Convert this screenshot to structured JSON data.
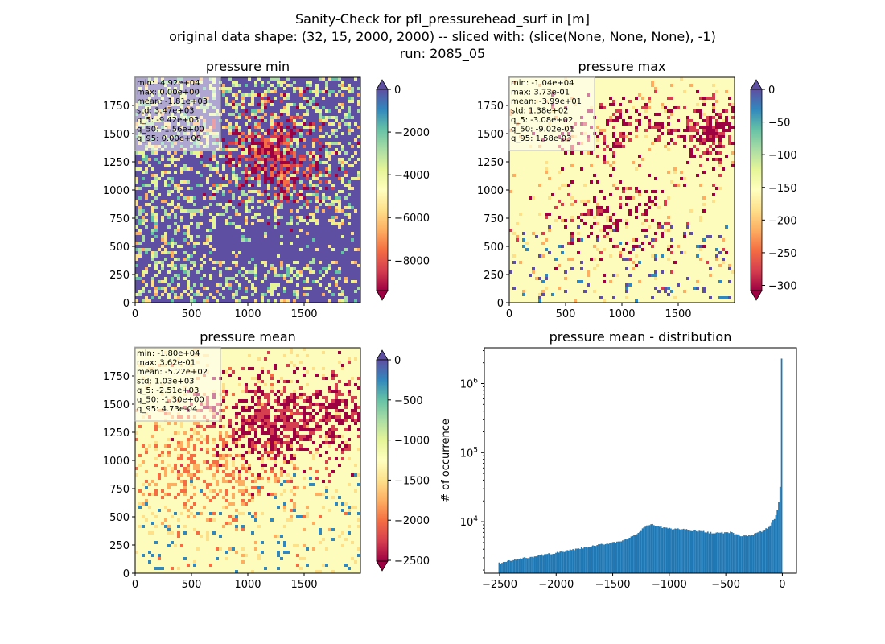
{
  "figure": {
    "title_lines": [
      "Sanity-Check for pfl_pressurehead_surf in [m]",
      "original data shape: (32, 15, 2000, 2000) -- sliced with: (slice(None, None, None), -1)",
      "run: 2085_05"
    ]
  },
  "chart_data": [
    {
      "type": "heatmap",
      "title": "pressure min",
      "colormap": "Spectral",
      "extend": "both",
      "x_ticks": [
        0,
        500,
        1000,
        1500
      ],
      "y_ticks": [
        0,
        250,
        500,
        750,
        1000,
        1250,
        1500,
        1750
      ],
      "xlim": [
        0,
        1999
      ],
      "ylim": [
        0,
        1999
      ],
      "color_range": [
        -9420,
        0
      ],
      "colorbar_ticks": [
        0,
        -2000,
        -4000,
        -6000,
        -8000
      ],
      "colorbar_labels": [
        "0",
        "−2000",
        "−4000",
        "−6000",
        "−8000"
      ],
      "stats": [
        "min: -4.92e+04",
        "max: 0.00e+00",
        "mean: -1.81e+03",
        "std: 3.47e+03",
        "q_5: -9.42e+03",
        "q_50: -1.56e+00",
        "q_95: 0.00e+00"
      ],
      "pattern": "mostly near 0 (blue) with strong negative (dark red) cluster in upper center and scattered yellow/green patches"
    },
    {
      "type": "heatmap",
      "title": "pressure max",
      "colormap": "Spectral",
      "extend": "both",
      "x_ticks": [
        0,
        500,
        1000,
        1500
      ],
      "y_ticks": [
        0,
        250,
        500,
        750,
        1000,
        1250,
        1500,
        1750
      ],
      "xlim": [
        0,
        1999
      ],
      "ylim": [
        0,
        1999
      ],
      "color_range": [
        -308,
        0
      ],
      "colorbar_ticks": [
        0,
        -50,
        -100,
        -150,
        -200,
        -250,
        -300
      ],
      "colorbar_labels": [
        "0",
        "−50",
        "−100",
        "−150",
        "−200",
        "−250",
        "−300"
      ],
      "stats": [
        "min: -1.04e+04",
        "max: 3.73e-01",
        "mean: -3.99e+01",
        "std: 1.38e+02",
        "q_5: -3.08e+02",
        "q_50: -9.02e-01",
        "q_95: 1.58e-03"
      ],
      "pattern": "mostly pale yellow (near 0) with red speckle in upper half, a dense red patch top-right and blue speckle in the bottom"
    },
    {
      "type": "heatmap",
      "title": "pressure mean",
      "colormap": "Spectral",
      "extend": "both",
      "x_ticks": [
        0,
        500,
        1000,
        1500
      ],
      "y_ticks": [
        0,
        250,
        500,
        750,
        1000,
        1250,
        1500,
        1750
      ],
      "xlim": [
        0,
        1999
      ],
      "ylim": [
        0,
        1999
      ],
      "color_range": [
        -2510,
        0
      ],
      "colorbar_ticks": [
        0,
        -500,
        -1000,
        -1500,
        -2000,
        -2500
      ],
      "colorbar_labels": [
        "0",
        "−500",
        "−1000",
        "−1500",
        "−2000",
        "−2500"
      ],
      "stats": [
        "min: -1.80e+04",
        "max: 3.62e-01",
        "mean: -5.22e+02",
        "std: 1.03e+03",
        "q_5: -2.51e+03",
        "q_50: -1.30e+00",
        "q_95: 4.73e-04"
      ],
      "pattern": "pale yellow background with dark red cluster upper center, orange speckle on the right and scattered blue dots in lower half"
    },
    {
      "type": "bar",
      "title": "pressure mean - distribution",
      "xlabel": "",
      "ylabel": "# of occurrence",
      "yscale": "log",
      "xlim": [
        -2635,
        125
      ],
      "ylim": [
        1800,
        3300000
      ],
      "x_ticks": [
        -2500,
        -2000,
        -1500,
        -1000,
        -500,
        0
      ],
      "x_tick_labels": [
        "−2500",
        "−2000",
        "−1500",
        "−1000",
        "−500",
        "0"
      ],
      "y_ticks": [
        10000,
        100000,
        1000000
      ],
      "y_tick_labels": [
        "10^4",
        "10^5",
        "10^6"
      ],
      "bar_color": "#1f77b4",
      "bin_width": 12.55,
      "bin_anchor_x": [
        -2510,
        -2300,
        -2000,
        -1700,
        -1400,
        -1300,
        -1200,
        -1150,
        -1100,
        -1000,
        -850,
        -650,
        -550,
        -450,
        -400,
        -300,
        -250,
        -200,
        -150,
        -100,
        -60,
        -40,
        -30,
        -20,
        -12,
        -5,
        0
      ],
      "bin_anchor_y": [
        2500,
        2950,
        3550,
        4350,
        5400,
        6300,
        8800,
        9200,
        8500,
        8000,
        7700,
        7000,
        6900,
        7000,
        6400,
        6200,
        6600,
        7000,
        7700,
        9000,
        12000,
        16000,
        20000,
        30000,
        46000,
        2300000,
        2300000
      ]
    }
  ]
}
